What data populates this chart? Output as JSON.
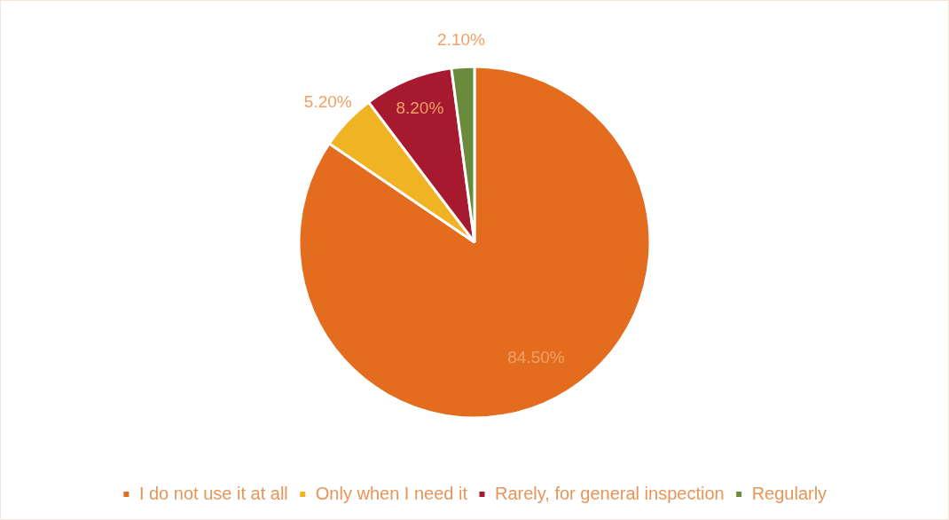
{
  "chart_data": {
    "type": "pie",
    "categories": [
      "I do not use it at all",
      "Only when I need it",
      "Rarely, for general inspection",
      "Regularly"
    ],
    "values": [
      84.5,
      5.2,
      8.2,
      2.1
    ],
    "colors": [
      "#e36c1e",
      "#f0b323",
      "#a6192e",
      "#6a8a3c"
    ],
    "value_labels": [
      "84.50%",
      "5.20%",
      "8.20%",
      "2.10%"
    ],
    "legend": "bottom"
  }
}
